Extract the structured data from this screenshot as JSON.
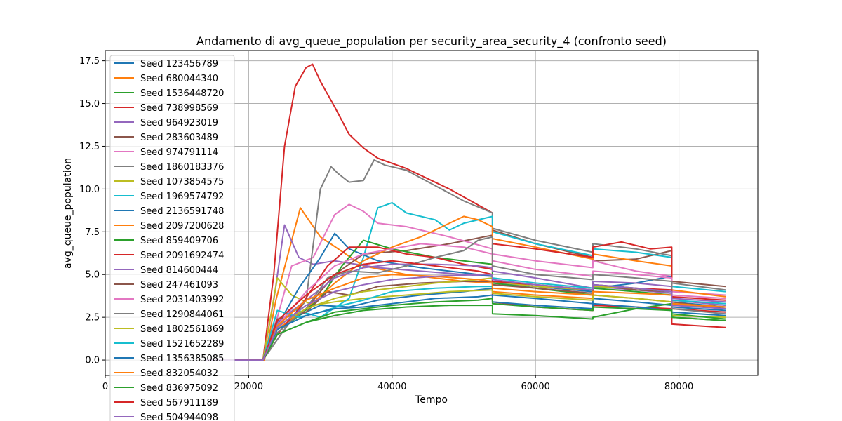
{
  "chart_data": {
    "type": "line",
    "title": "Andamento di avg_queue_population per security_area_security_4 (confronto seed)",
    "xlabel": "Tempo",
    "ylabel": "avg_queue_population",
    "xlim": [
      0,
      91000
    ],
    "ylim": [
      -0.9,
      18.1
    ],
    "x_ticks": [
      0,
      20000,
      40000,
      60000,
      80000
    ],
    "x_tick_labels": [
      "0",
      "20000",
      "40000",
      "60000",
      "80000"
    ],
    "y_ticks": [
      0.0,
      2.5,
      5.0,
      7.5,
      10.0,
      12.5,
      15.0,
      17.5
    ],
    "y_tick_labels": [
      "0.0",
      "2.5",
      "5.0",
      "7.5",
      "10.0",
      "12.5",
      "15.0",
      "17.5"
    ],
    "grid": true,
    "legend_position": "top-left",
    "colors": [
      "#1f77b4",
      "#ff7f0e",
      "#2ca02c",
      "#d62728",
      "#9467bd",
      "#8c564b",
      "#e377c2",
      "#7f7f7f",
      "#bcbd22",
      "#17becf"
    ],
    "series": [
      {
        "name": "Seed 123456789",
        "color": "#1f77b4",
        "x": [
          14000,
          22000,
          23500,
          26000,
          30000,
          34000,
          38000,
          44000,
          50000,
          54000,
          54001,
          60000,
          68000,
          68001,
          74000,
          79000,
          79001,
          86500
        ],
        "y": [
          0,
          0,
          1.6,
          2.4,
          3.2,
          3.1,
          3.5,
          3.8,
          4.0,
          4.2,
          3.8,
          3.6,
          3.3,
          3.6,
          3.4,
          3.2,
          3.1,
          2.9
        ]
      },
      {
        "name": "Seed 680044340",
        "color": "#ff7f0e",
        "x": [
          14000,
          22200,
          23800,
          27200,
          30000,
          36000,
          42000,
          50000,
          54000,
          54001,
          60000,
          68000,
          68001,
          74000,
          79000,
          79001,
          86500
        ],
        "y": [
          0,
          0,
          3.5,
          8.9,
          7.2,
          5.5,
          5.0,
          4.6,
          4.5,
          4.0,
          3.8,
          3.6,
          3.8,
          3.6,
          3.4,
          3.2,
          3.1
        ]
      },
      {
        "name": "Seed 1536448720",
        "color": "#2ca02c",
        "x": [
          14000,
          22000,
          24000,
          28000,
          32000,
          36000,
          42000,
          48000,
          54000,
          54001,
          60000,
          68000,
          68001,
          74000,
          79000,
          79001,
          86500
        ],
        "y": [
          0,
          0,
          1.5,
          2.2,
          2.6,
          2.9,
          3.1,
          3.2,
          3.2,
          2.7,
          2.6,
          2.4,
          2.5,
          3.0,
          3.3,
          2.5,
          2.3
        ]
      },
      {
        "name": "Seed 738998569",
        "color": "#d62728",
        "x": [
          14000,
          22000,
          23500,
          25000,
          26500,
          28000,
          28900,
          30000,
          32000,
          34000,
          36000,
          38000,
          42000,
          48000,
          54000,
          54001,
          60000,
          68000,
          68001,
          74000,
          79000,
          79001,
          86500
        ],
        "y": [
          0,
          0,
          5.0,
          12.5,
          16.0,
          17.1,
          17.3,
          16.3,
          14.8,
          13.2,
          12.4,
          11.8,
          11.2,
          10.0,
          8.6,
          3.4,
          3.1,
          2.9,
          3.2,
          3.1,
          3.0,
          2.1,
          1.9
        ]
      },
      {
        "name": "Seed 964923019",
        "color": "#9467bd",
        "x": [
          14000,
          22000,
          23500,
          25000,
          27000,
          29000,
          32000,
          38000,
          44000,
          50000,
          54000,
          54001,
          60000,
          68000,
          68001,
          74000,
          79000,
          79001,
          86500
        ],
        "y": [
          0,
          0,
          3.5,
          7.9,
          6.0,
          5.6,
          5.8,
          5.4,
          5.2,
          5.0,
          4.9,
          4.5,
          4.3,
          4.0,
          4.3,
          4.1,
          3.9,
          3.6,
          3.4
        ]
      },
      {
        "name": "Seed 283603489",
        "color": "#8c564b",
        "x": [
          14000,
          22000,
          24000,
          28000,
          32000,
          36000,
          42000,
          48000,
          54000,
          54001,
          60000,
          68000,
          68001,
          74000,
          79000,
          79001,
          86500
        ],
        "y": [
          0,
          0,
          2.0,
          3.0,
          5.0,
          6.2,
          6.4,
          6.8,
          7.3,
          7.6,
          6.8,
          6.0,
          5.8,
          5.9,
          6.4,
          4.6,
          4.3
        ]
      },
      {
        "name": "Seed 974791114",
        "color": "#e377c2",
        "x": [
          14000,
          22000,
          24000,
          26000,
          29000,
          32000,
          34000,
          36000,
          38000,
          42000,
          48000,
          54000,
          54001,
          60000,
          68000,
          68001,
          74000,
          79000,
          79001,
          86500
        ],
        "y": [
          0,
          0,
          2.5,
          5.5,
          6.0,
          8.5,
          9.1,
          8.7,
          8.0,
          7.8,
          7.2,
          6.5,
          6.2,
          5.8,
          5.4,
          5.8,
          5.2,
          4.9,
          4.0,
          3.8
        ]
      },
      {
        "name": "Seed 1860183376",
        "color": "#7f7f7f",
        "x": [
          14000,
          22000,
          24500,
          28000,
          30000,
          31500,
          32500,
          34000,
          36000,
          37500,
          39000,
          42000,
          46000,
          50000,
          54000,
          54001,
          60000,
          68000,
          68001,
          74000,
          79000,
          79001,
          86500
        ],
        "y": [
          0,
          0,
          1.5,
          3.5,
          10.0,
          11.3,
          10.9,
          10.4,
          10.5,
          11.7,
          11.4,
          11.1,
          10.2,
          9.3,
          8.6,
          7.7,
          7.0,
          6.3,
          6.8,
          6.5,
          6.1,
          4.5,
          4.1
        ]
      },
      {
        "name": "Seed 1073854575",
        "color": "#bcbd22",
        "x": [
          14000,
          22000,
          24000,
          26000,
          29000,
          32000,
          36000,
          42000,
          48000,
          54000,
          54001,
          60000,
          68000,
          68001,
          74000,
          79000,
          79001,
          86500
        ],
        "y": [
          0,
          0,
          4.8,
          3.8,
          3.2,
          3.4,
          3.6,
          3.8,
          4.0,
          4.1,
          3.9,
          3.7,
          3.5,
          3.8,
          3.6,
          3.4,
          2.6,
          2.5
        ]
      },
      {
        "name": "Seed 1969574792",
        "color": "#17becf",
        "x": [
          14000,
          22000,
          24000,
          26000,
          30000,
          34000,
          36000,
          38000,
          40000,
          42000,
          46000,
          48000,
          50000,
          54000,
          54001,
          60000,
          68000,
          68001,
          74000,
          79000,
          79001,
          86500
        ],
        "y": [
          0,
          0,
          2.0,
          3.0,
          2.5,
          3.6,
          6.0,
          8.9,
          9.2,
          8.6,
          8.2,
          7.6,
          8.0,
          8.4,
          7.5,
          6.8,
          6.1,
          6.5,
          6.3,
          6.0,
          4.3,
          4.0
        ]
      },
      {
        "name": "Seed 2136591748",
        "color": "#1f77b4",
        "x": [
          14000,
          22000,
          24000,
          27000,
          30000,
          32000,
          34000,
          38000,
          44000,
          50000,
          54000,
          54001,
          60000,
          68000,
          68001,
          74000,
          79000,
          79001,
          86500
        ],
        "y": [
          0,
          0,
          2.0,
          4.2,
          6.0,
          7.4,
          6.5,
          5.8,
          5.4,
          5.1,
          4.9,
          4.6,
          4.3,
          4.0,
          4.2,
          4.5,
          4.9,
          3.4,
          3.1
        ]
      },
      {
        "name": "Seed 2097200628",
        "color": "#ff7f0e",
        "x": [
          14000,
          22000,
          24000,
          28000,
          32000,
          36000,
          40000,
          44000,
          48000,
          50000,
          52000,
          54000,
          54001,
          60000,
          68000,
          68001,
          74000,
          79000,
          79001,
          86500
        ],
        "y": [
          0,
          0,
          1.8,
          3.0,
          4.5,
          5.8,
          6.6,
          7.2,
          8.0,
          8.4,
          8.2,
          7.8,
          7.1,
          6.6,
          5.9,
          6.2,
          5.8,
          5.5,
          4.1,
          3.7
        ]
      },
      {
        "name": "Seed 859409706",
        "color": "#2ca02c",
        "x": [
          14000,
          22000,
          24000,
          27000,
          30000,
          33000,
          36000,
          40000,
          46000,
          52000,
          54000,
          54001,
          60000,
          68000,
          68001,
          74000,
          79000,
          79001,
          86500
        ],
        "y": [
          0,
          0,
          1.6,
          2.6,
          3.6,
          5.5,
          7.0,
          6.5,
          6.0,
          5.7,
          5.6,
          4.5,
          4.2,
          3.8,
          4.2,
          4.0,
          3.8,
          2.7,
          2.4
        ]
      },
      {
        "name": "Seed 2091692474",
        "color": "#d62728",
        "x": [
          14000,
          22000,
          24000,
          27000,
          31000,
          34000,
          38000,
          42000,
          46000,
          50000,
          54000,
          54001,
          60000,
          68000,
          68001,
          72000,
          76000,
          79000,
          79001,
          86500
        ],
        "y": [
          0,
          0,
          1.5,
          3.0,
          5.5,
          6.6,
          6.6,
          6.2,
          6.0,
          5.6,
          5.3,
          6.8,
          6.5,
          6.0,
          6.6,
          6.9,
          6.5,
          6.6,
          3.0,
          2.8
        ]
      },
      {
        "name": "Seed 814600444",
        "color": "#9467bd",
        "x": [
          14000,
          22000,
          24000,
          28000,
          32000,
          36000,
          40000,
          46000,
          52000,
          54000,
          54001,
          60000,
          68000,
          68001,
          74000,
          79000,
          79001,
          86500
        ],
        "y": [
          0,
          0,
          2.2,
          3.5,
          4.8,
          5.4,
          5.6,
          5.6,
          5.5,
          5.4,
          5.2,
          4.8,
          4.2,
          4.6,
          4.5,
          4.3,
          3.5,
          3.2
        ]
      },
      {
        "name": "Seed 247461093",
        "color": "#8c564b",
        "x": [
          14000,
          22000,
          24000,
          28000,
          31000,
          34000,
          38000,
          44000,
          50000,
          54000,
          54001,
          60000,
          68000,
          68001,
          74000,
          79000,
          79001,
          86500
        ],
        "y": [
          0,
          0,
          2.4,
          2.8,
          4.0,
          3.8,
          4.3,
          4.5,
          4.6,
          4.6,
          4.4,
          4.2,
          3.9,
          4.4,
          4.1,
          4.0,
          3.4,
          3.0
        ]
      },
      {
        "name": "Seed 2031403992",
        "color": "#e377c2",
        "x": [
          14000,
          22000,
          24000,
          28000,
          32000,
          36000,
          40000,
          44000,
          50000,
          54000,
          54001,
          60000,
          68000,
          68001,
          74000,
          79000,
          79001,
          86500
        ],
        "y": [
          0,
          0,
          2.0,
          4.0,
          5.5,
          6.2,
          6.5,
          6.8,
          6.6,
          6.2,
          5.8,
          5.3,
          4.9,
          5.2,
          5.0,
          4.8,
          3.8,
          3.6
        ]
      },
      {
        "name": "Seed 1290844061",
        "color": "#7f7f7f",
        "x": [
          14000,
          22000,
          24000,
          28000,
          31000,
          34000,
          38000,
          42000,
          46000,
          50000,
          52000,
          54000,
          54001,
          60000,
          68000,
          68001,
          74000,
          79000,
          79001,
          86500
        ],
        "y": [
          0,
          0,
          1.6,
          3.0,
          4.8,
          5.2,
          5.1,
          5.5,
          6.0,
          6.4,
          7.0,
          7.2,
          5.5,
          5.0,
          4.7,
          5.0,
          4.8,
          4.6,
          3.0,
          2.7
        ]
      },
      {
        "name": "Seed 1802561869",
        "color": "#bcbd22",
        "x": [
          14000,
          22000,
          24000,
          28000,
          32000,
          36000,
          40000,
          46000,
          52000,
          54000,
          54001,
          60000,
          68000,
          68001,
          74000,
          79000,
          79001,
          86500
        ],
        "y": [
          0,
          0,
          2.0,
          3.0,
          3.6,
          4.0,
          4.2,
          4.5,
          4.7,
          4.8,
          4.6,
          4.3,
          4.1,
          4.3,
          4.2,
          4.0,
          3.3,
          3.1
        ]
      },
      {
        "name": "Seed 1521652289",
        "color": "#17becf",
        "x": [
          14000,
          22000,
          24000,
          27000,
          30000,
          33000,
          36000,
          40000,
          46000,
          52000,
          54000,
          54001,
          60000,
          68000,
          68001,
          74000,
          79000,
          79001,
          86500
        ],
        "y": [
          0,
          0,
          2.9,
          2.5,
          2.8,
          3.2,
          3.5,
          4.0,
          4.2,
          4.3,
          4.3,
          4.8,
          4.5,
          4.2,
          4.4,
          4.2,
          4.0,
          3.5,
          3.3
        ]
      },
      {
        "name": "Seed 1356385085",
        "color": "#1f77b4",
        "x": [
          14000,
          22000,
          24000,
          28000,
          32000,
          36000,
          40000,
          46000,
          52000,
          54000,
          54001,
          60000,
          68000,
          68001,
          74000,
          79000,
          79001,
          86500
        ],
        "y": [
          0,
          0,
          1.8,
          2.6,
          3.0,
          3.1,
          3.3,
          3.6,
          3.7,
          3.8,
          3.4,
          3.2,
          3.0,
          3.3,
          3.1,
          2.9,
          2.8,
          2.6
        ]
      },
      {
        "name": "Seed 832054032",
        "color": "#ff7f0e",
        "x": [
          14000,
          22000,
          24000,
          28000,
          32000,
          36000,
          40000,
          46000,
          52000,
          54000,
          54001,
          60000,
          68000,
          68001,
          74000,
          79000,
          79001,
          86500
        ],
        "y": [
          0,
          0,
          2.0,
          3.5,
          4.2,
          4.8,
          5.0,
          4.9,
          4.7,
          4.6,
          4.2,
          4.0,
          3.8,
          4.0,
          3.9,
          3.8,
          3.3,
          3.1
        ]
      },
      {
        "name": "Seed 836975092",
        "color": "#2ca02c",
        "x": [
          14000,
          22000,
          24000,
          28000,
          32000,
          36000,
          40000,
          46000,
          52000,
          54000,
          54001,
          60000,
          68000,
          68001,
          74000,
          79000,
          79001,
          86500
        ],
        "y": [
          0,
          0,
          1.5,
          2.2,
          2.8,
          3.0,
          3.2,
          3.4,
          3.5,
          3.6,
          3.3,
          3.1,
          2.9,
          3.1,
          3.0,
          2.9,
          2.5,
          2.3
        ]
      },
      {
        "name": "Seed 567911189",
        "color": "#d62728",
        "x": [
          14000,
          22000,
          24000,
          28000,
          32000,
          36000,
          40000,
          46000,
          52000,
          54000,
          54001,
          60000,
          68000,
          68001,
          74000,
          79000,
          79001,
          86500
        ],
        "y": [
          0,
          0,
          2.3,
          3.8,
          5.0,
          5.6,
          5.8,
          5.5,
          5.2,
          5.0,
          4.6,
          4.4,
          4.1,
          4.4,
          4.2,
          4.1,
          3.7,
          3.5
        ]
      },
      {
        "name": "Seed 504944098",
        "color": "#9467bd",
        "x": [
          14000,
          22000,
          24000,
          28000,
          32000,
          36000,
          40000,
          46000,
          52000,
          54000,
          54001,
          60000,
          68000,
          68001,
          74000,
          79000,
          79001,
          86500
        ],
        "y": [
          0,
          0,
          1.9,
          3.2,
          4.0,
          4.4,
          4.7,
          4.9,
          5.0,
          5.0,
          4.7,
          4.4,
          4.1,
          4.4,
          4.2,
          4.0,
          3.2,
          3.0
        ]
      }
    ]
  }
}
